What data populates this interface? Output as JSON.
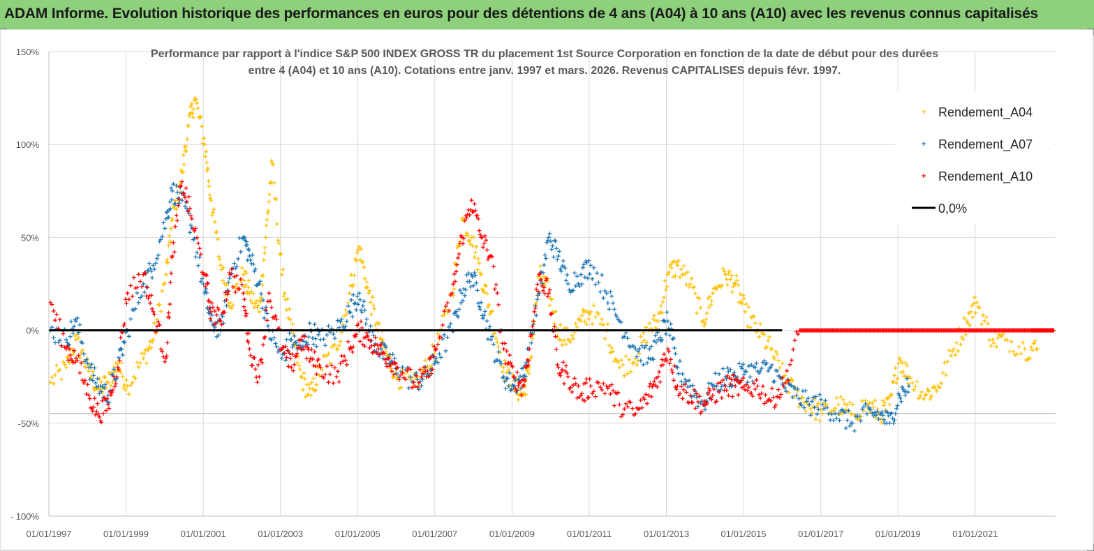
{
  "banner": {
    "title": "ADAM Informe. Evolution historique des performances en euros pour des détentions de 4 ans (A04) à 10 ans (A10) avec les revenus connus capitalisés"
  },
  "colors": {
    "banner_bg": "#8fd07c",
    "A04": "#ffc000",
    "A07": "#1f77b4",
    "A10": "#ff0000",
    "zero_line": "#000000",
    "grid": "#d9d9d9"
  },
  "chart_data": {
    "type": "scatter",
    "title_lines": [
      "Performance par rapport à l'indice S&P 500 INDEX GROSS TR  du placement 1st Source Corporation en fonction de la date de début pour des durées",
      "entre 4 (A04) et 10 ans (A10). Cotations entre janv. 1997 et mars. 2026. Revenus CAPITALISES depuis févr. 1997."
    ],
    "xlabel": "",
    "ylabel": "",
    "x_ticks": [
      "01/01/1997",
      "01/01/1999",
      "01/01/2001",
      "01/01/2003",
      "01/01/2005",
      "01/01/2007",
      "01/01/2009",
      "01/01/2011",
      "01/01/2013",
      "01/01/2015",
      "01/01/2017",
      "01/01/2019",
      "01/01/2021"
    ],
    "x_range": [
      "1997-01-01",
      "2023-02-01"
    ],
    "y_ticks": [
      "150%",
      "100%",
      "50%",
      "0%",
      "-50%",
      "- 100%"
    ],
    "y_tick_values": [
      150,
      100,
      50,
      0,
      -50,
      -100
    ],
    "ylim": [
      -100,
      150
    ],
    "legend_position": "right",
    "series": [
      {
        "name": "Rendement_A04",
        "marker": "plus",
        "points": [
          [
            "1997-01",
            -28
          ],
          [
            "1997-06",
            -20
          ],
          [
            "1997-09",
            -5
          ],
          [
            "1998-01",
            -22
          ],
          [
            "1998-04",
            -32
          ],
          [
            "1998-07",
            -28
          ],
          [
            "1998-10",
            -18
          ],
          [
            "1999-01",
            -30
          ],
          [
            "1999-06",
            -15
          ],
          [
            "1999-09",
            -5
          ],
          [
            "2000-01",
            30
          ],
          [
            "2000-03",
            60
          ],
          [
            "2000-06",
            85
          ],
          [
            "2000-08",
            110
          ],
          [
            "2000-10",
            125
          ],
          [
            "2001-01",
            100
          ],
          [
            "2001-03",
            70
          ],
          [
            "2001-06",
            35
          ],
          [
            "2001-09",
            15
          ],
          [
            "2002-01",
            30
          ],
          [
            "2002-03",
            20
          ],
          [
            "2002-06",
            10
          ],
          [
            "2002-08",
            50
          ],
          [
            "2002-10",
            90
          ],
          [
            "2003-01",
            30
          ],
          [
            "2003-04",
            0
          ],
          [
            "2003-07",
            -25
          ],
          [
            "2003-10",
            -35
          ],
          [
            "2004-01",
            -20
          ],
          [
            "2004-06",
            -10
          ],
          [
            "2004-10",
            20
          ],
          [
            "2005-01",
            45
          ],
          [
            "2005-04",
            20
          ],
          [
            "2005-07",
            0
          ],
          [
            "2005-10",
            -15
          ],
          [
            "2006-01",
            -25
          ],
          [
            "2006-06",
            -30
          ],
          [
            "2006-10",
            -20
          ],
          [
            "2007-01",
            -10
          ],
          [
            "2007-06",
            20
          ],
          [
            "2007-09",
            60
          ],
          [
            "2007-12",
            50
          ],
          [
            "2008-03",
            30
          ],
          [
            "2008-06",
            10
          ],
          [
            "2008-10",
            -20
          ],
          [
            "2009-01",
            -30
          ],
          [
            "2009-04",
            -35
          ],
          [
            "2009-06",
            -20
          ],
          [
            "2009-09",
            30
          ],
          [
            "2009-12",
            20
          ],
          [
            "2010-03",
            0
          ],
          [
            "2010-06",
            -5
          ],
          [
            "2010-10",
            5
          ],
          [
            "2011-01",
            10
          ],
          [
            "2011-06",
            0
          ],
          [
            "2011-10",
            -20
          ],
          [
            "2012-03",
            -15
          ],
          [
            "2012-07",
            0
          ],
          [
            "2012-10",
            5
          ],
          [
            "2013-01",
            30
          ],
          [
            "2013-04",
            35
          ],
          [
            "2013-08",
            25
          ],
          [
            "2013-12",
            5
          ],
          [
            "2014-03",
            20
          ],
          [
            "2014-07",
            30
          ],
          [
            "2014-10",
            25
          ],
          [
            "2015-01",
            10
          ],
          [
            "2015-05",
            0
          ],
          [
            "2015-09",
            -10
          ],
          [
            "2016-01",
            -25
          ],
          [
            "2016-05",
            -35
          ],
          [
            "2016-09",
            -40
          ],
          [
            "2017-01",
            -45
          ],
          [
            "2017-06",
            -40
          ],
          [
            "2017-10",
            -45
          ],
          [
            "2018-03",
            -40
          ],
          [
            "2018-07",
            -45
          ],
          [
            "2018-10",
            -40
          ],
          [
            "2019-01",
            -15
          ],
          [
            "2019-04",
            -25
          ],
          [
            "2019-09",
            -35
          ],
          [
            "2020-01",
            -30
          ],
          [
            "2020-06",
            -10
          ],
          [
            "2020-10",
            5
          ],
          [
            "2021-01",
            15
          ],
          [
            "2021-06",
            -5
          ],
          [
            "2021-10",
            -5
          ],
          [
            "2022-04",
            -10
          ],
          [
            "2022-08",
            -10
          ]
        ]
      },
      {
        "name": "Rendement_A07",
        "marker": "plus",
        "points": [
          [
            "1997-01",
            0
          ],
          [
            "1997-06",
            -5
          ],
          [
            "1997-09",
            5
          ],
          [
            "1998-01",
            -20
          ],
          [
            "1998-04",
            -30
          ],
          [
            "1998-07",
            -35
          ],
          [
            "1998-10",
            -20
          ],
          [
            "1999-01",
            0
          ],
          [
            "1999-06",
            25
          ],
          [
            "1999-09",
            35
          ],
          [
            "2000-01",
            60
          ],
          [
            "2000-03",
            75
          ],
          [
            "2000-06",
            70
          ],
          [
            "2000-09",
            55
          ],
          [
            "2001-01",
            20
          ],
          [
            "2001-03",
            5
          ],
          [
            "2001-06",
            0
          ],
          [
            "2001-09",
            30
          ],
          [
            "2002-01",
            50
          ],
          [
            "2002-03",
            40
          ],
          [
            "2002-06",
            25
          ],
          [
            "2002-09",
            0
          ],
          [
            "2003-01",
            -15
          ],
          [
            "2003-04",
            -5
          ],
          [
            "2003-07",
            -10
          ],
          [
            "2003-10",
            0
          ],
          [
            "2004-01",
            -5
          ],
          [
            "2004-06",
            0
          ],
          [
            "2004-10",
            10
          ],
          [
            "2005-01",
            20
          ],
          [
            "2005-04",
            0
          ],
          [
            "2005-07",
            -10
          ],
          [
            "2005-10",
            -15
          ],
          [
            "2006-01",
            -20
          ],
          [
            "2006-06",
            -28
          ],
          [
            "2006-10",
            -25
          ],
          [
            "2007-01",
            -15
          ],
          [
            "2007-06",
            0
          ],
          [
            "2007-09",
            20
          ],
          [
            "2007-12",
            30
          ],
          [
            "2008-03",
            15
          ],
          [
            "2008-06",
            -5
          ],
          [
            "2008-10",
            -25
          ],
          [
            "2009-01",
            -30
          ],
          [
            "2009-04",
            -25
          ],
          [
            "2009-06",
            -10
          ],
          [
            "2009-09",
            20
          ],
          [
            "2009-12",
            50
          ],
          [
            "2010-03",
            40
          ],
          [
            "2010-06",
            25
          ],
          [
            "2010-10",
            30
          ],
          [
            "2011-01",
            35
          ],
          [
            "2011-06",
            20
          ],
          [
            "2011-10",
            5
          ],
          [
            "2012-03",
            -10
          ],
          [
            "2012-07",
            -15
          ],
          [
            "2012-10",
            -5
          ],
          [
            "2013-01",
            5
          ],
          [
            "2013-04",
            -20
          ],
          [
            "2013-08",
            -30
          ],
          [
            "2013-12",
            -40
          ],
          [
            "2014-03",
            -30
          ],
          [
            "2014-07",
            -25
          ],
          [
            "2014-10",
            -25
          ],
          [
            "2015-01",
            -22
          ],
          [
            "2015-05",
            -22
          ],
          [
            "2015-09",
            -20
          ],
          [
            "2016-01",
            -30
          ],
          [
            "2016-05",
            -35
          ],
          [
            "2016-09",
            -40
          ],
          [
            "2017-01",
            -40
          ],
          [
            "2017-06",
            -45
          ],
          [
            "2017-10",
            -50
          ],
          [
            "2018-03",
            -45
          ],
          [
            "2018-07",
            -45
          ],
          [
            "2018-10",
            -50
          ],
          [
            "2019-01",
            -35
          ],
          [
            "2019-04",
            -30
          ]
        ]
      },
      {
        "name": "Rendement_A10",
        "marker": "plus",
        "points": [
          [
            "1997-01",
            15
          ],
          [
            "1997-06",
            -10
          ],
          [
            "1997-09",
            -15
          ],
          [
            "1998-01",
            -35
          ],
          [
            "1998-04",
            -45
          ],
          [
            "1998-07",
            -40
          ],
          [
            "1998-10",
            -20
          ],
          [
            "1999-01",
            20
          ],
          [
            "1999-06",
            30
          ],
          [
            "1999-09",
            10
          ],
          [
            "2000-01",
            -15
          ],
          [
            "2000-03",
            40
          ],
          [
            "2000-06",
            80
          ],
          [
            "2000-09",
            60
          ],
          [
            "2001-01",
            30
          ],
          [
            "2001-03",
            10
          ],
          [
            "2001-06",
            5
          ],
          [
            "2001-09",
            30
          ],
          [
            "2002-01",
            20
          ],
          [
            "2002-03",
            -10
          ],
          [
            "2002-06",
            -25
          ],
          [
            "2002-09",
            20
          ],
          [
            "2003-01",
            -10
          ],
          [
            "2003-04",
            -20
          ],
          [
            "2003-07",
            -5
          ],
          [
            "2003-10",
            -15
          ],
          [
            "2004-01",
            -20
          ],
          [
            "2004-06",
            -25
          ],
          [
            "2004-10",
            -10
          ],
          [
            "2005-01",
            0
          ],
          [
            "2005-04",
            -5
          ],
          [
            "2005-07",
            -10
          ],
          [
            "2005-10",
            -15
          ],
          [
            "2006-01",
            -20
          ],
          [
            "2006-06",
            -28
          ],
          [
            "2006-10",
            -25
          ],
          [
            "2007-01",
            -10
          ],
          [
            "2007-06",
            20
          ],
          [
            "2007-09",
            50
          ],
          [
            "2007-12",
            70
          ],
          [
            "2008-03",
            50
          ],
          [
            "2008-06",
            40
          ],
          [
            "2008-10",
            -10
          ],
          [
            "2009-01",
            -25
          ],
          [
            "2009-04",
            -30
          ],
          [
            "2009-06",
            -10
          ],
          [
            "2009-09",
            30
          ],
          [
            "2009-12",
            20
          ],
          [
            "2010-03",
            -20
          ],
          [
            "2010-06",
            -25
          ],
          [
            "2010-10",
            -35
          ],
          [
            "2011-01",
            -30
          ],
          [
            "2011-06",
            -30
          ],
          [
            "2011-10",
            -40
          ],
          [
            "2012-03",
            -45
          ],
          [
            "2012-07",
            -35
          ],
          [
            "2012-10",
            -25
          ],
          [
            "2013-01",
            -10
          ],
          [
            "2013-04",
            -30
          ],
          [
            "2013-08",
            -35
          ],
          [
            "2013-12",
            -40
          ],
          [
            "2014-03",
            -35
          ],
          [
            "2014-07",
            -30
          ],
          [
            "2014-10",
            -30
          ],
          [
            "2015-01",
            -32
          ],
          [
            "2015-05",
            -30
          ],
          [
            "2015-09",
            -38
          ],
          [
            "2016-01",
            -30
          ],
          [
            "2016-06",
            0
          ],
          [
            "2017-06",
            0
          ],
          [
            "2018-06",
            0
          ],
          [
            "2019-06",
            0
          ],
          [
            "2020-06",
            0
          ],
          [
            "2021-06",
            0
          ],
          [
            "2022-06",
            0
          ],
          [
            "2023-01",
            0
          ]
        ]
      },
      {
        "name": "0,0%",
        "marker": "line",
        "points": [
          [
            "1997-01-01",
            0
          ],
          [
            "2016-01-01",
            0
          ]
        ]
      }
    ]
  }
}
